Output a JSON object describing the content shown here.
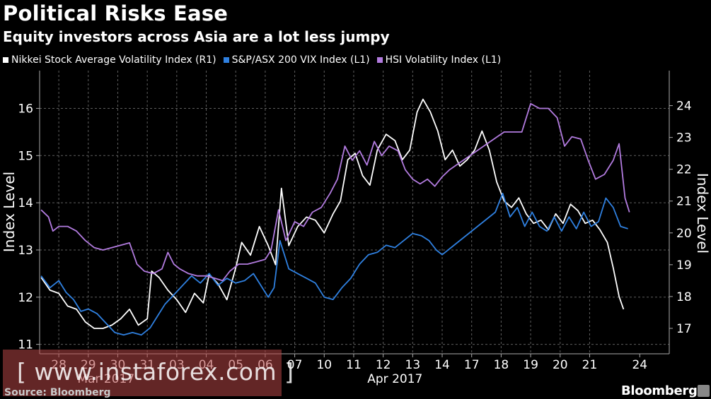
{
  "header": {
    "title": "Political Risks Ease",
    "subtitle": "Equity investors across Asia are a lot less jumpy"
  },
  "footer": {
    "source": "Source: Bloomberg",
    "brand": "Bloomberg",
    "watermark": "[ www.instaforex.com ]"
  },
  "colors": {
    "background": "#000000",
    "nikkei": "#ffffff",
    "asx": "#2f80e0",
    "hsi": "#b27bdf",
    "grid": "#6a6a6a"
  },
  "chart_data": {
    "type": "line",
    "title": "Political Risks Ease",
    "subtitle": "Equity investors across Asia are a lot less jumpy",
    "y_left": {
      "label": "Index Level",
      "range": [
        10.8,
        16.8
      ],
      "ticks": [
        11,
        12,
        13,
        14,
        15,
        16
      ]
    },
    "y_right": {
      "label": "Index Level",
      "range": [
        16.2,
        25.1
      ],
      "ticks": [
        17,
        18,
        19,
        20,
        21,
        22,
        23,
        24
      ]
    },
    "x": {
      "range": [
        27.5,
        24.2
      ],
      "ticks": [
        "28",
        "29",
        "30",
        "31",
        "03",
        "04",
        "05",
        "06",
        "07",
        "10",
        "11",
        "12",
        "13",
        "14",
        "17",
        "18",
        "19",
        "20",
        "21",
        "24"
      ],
      "tick_positions": [
        0,
        1,
        2,
        3,
        4,
        5,
        6,
        7,
        8,
        9,
        10,
        11,
        12,
        13,
        14,
        15,
        16,
        17,
        18,
        19.7
      ],
      "month_labels": [
        {
          "label": "Mar 2017",
          "at": 1.6
        },
        {
          "label": "Apr 2017",
          "at": 11.4
        }
      ],
      "domain": [
        -0.65,
        20.7
      ]
    },
    "series": [
      {
        "name": "Nikkei Stock Average Volatility Index (R1)",
        "axis": "right",
        "color": "#ffffff",
        "points": [
          [
            -0.6,
            18.6
          ],
          [
            -0.3,
            18.2
          ],
          [
            0,
            18.1
          ],
          [
            0.3,
            17.7
          ],
          [
            0.6,
            17.6
          ],
          [
            0.9,
            17.2
          ],
          [
            1.2,
            17.0
          ],
          [
            1.5,
            17.0
          ],
          [
            1.8,
            17.1
          ],
          [
            2.1,
            17.3
          ],
          [
            2.4,
            17.6
          ],
          [
            2.7,
            17.1
          ],
          [
            3.0,
            17.3
          ],
          [
            3.15,
            18.8
          ],
          [
            3.4,
            18.6
          ],
          [
            3.7,
            18.2
          ],
          [
            4.0,
            17.9
          ],
          [
            4.3,
            17.5
          ],
          [
            4.6,
            18.1
          ],
          [
            4.9,
            17.8
          ],
          [
            5.1,
            18.7
          ],
          [
            5.4,
            18.4
          ],
          [
            5.7,
            17.9
          ],
          [
            6.0,
            18.9
          ],
          [
            6.2,
            19.7
          ],
          [
            6.5,
            19.3
          ],
          [
            6.8,
            20.2
          ],
          [
            7.1,
            19.6
          ],
          [
            7.35,
            19.0
          ],
          [
            7.55,
            21.4
          ],
          [
            7.8,
            19.6
          ],
          [
            8.1,
            20.2
          ],
          [
            8.4,
            20.5
          ],
          [
            8.7,
            20.4
          ],
          [
            9.0,
            20.0
          ],
          [
            9.3,
            20.6
          ],
          [
            9.55,
            21.0
          ],
          [
            9.8,
            22.3
          ],
          [
            10.05,
            22.5
          ],
          [
            10.3,
            21.8
          ],
          [
            10.55,
            21.5
          ],
          [
            10.8,
            22.6
          ],
          [
            11.1,
            23.1
          ],
          [
            11.4,
            22.9
          ],
          [
            11.65,
            22.3
          ],
          [
            11.9,
            22.6
          ],
          [
            12.15,
            23.8
          ],
          [
            12.35,
            24.2
          ],
          [
            12.6,
            23.8
          ],
          [
            12.85,
            23.2
          ],
          [
            13.1,
            22.3
          ],
          [
            13.35,
            22.6
          ],
          [
            13.6,
            22.1
          ],
          [
            13.85,
            22.3
          ],
          [
            14.1,
            22.6
          ],
          [
            14.35,
            23.2
          ],
          [
            14.6,
            22.6
          ],
          [
            14.85,
            21.6
          ],
          [
            15.1,
            21.0
          ],
          [
            15.35,
            20.8
          ],
          [
            15.6,
            21.1
          ],
          [
            15.85,
            20.6
          ],
          [
            16.1,
            20.3
          ],
          [
            16.35,
            20.4
          ],
          [
            16.6,
            20.1
          ],
          [
            16.85,
            20.6
          ],
          [
            17.1,
            20.3
          ],
          [
            17.35,
            20.9
          ],
          [
            17.6,
            20.7
          ],
          [
            17.85,
            20.3
          ],
          [
            18.1,
            20.4
          ],
          [
            18.35,
            20.1
          ],
          [
            18.6,
            19.7
          ],
          [
            18.8,
            18.9
          ],
          [
            19.0,
            18.0
          ],
          [
            19.15,
            17.6
          ]
        ]
      },
      {
        "name": "S&P/ASX 200 VIX Index (L1)",
        "axis": "left",
        "color": "#2f80e0",
        "points": [
          [
            -0.6,
            12.45
          ],
          [
            -0.3,
            12.2
          ],
          [
            0,
            12.35
          ],
          [
            0.25,
            12.1
          ],
          [
            0.5,
            11.95
          ],
          [
            0.75,
            11.7
          ],
          [
            1.0,
            11.75
          ],
          [
            1.3,
            11.65
          ],
          [
            1.6,
            11.45
          ],
          [
            1.9,
            11.25
          ],
          [
            2.2,
            11.2
          ],
          [
            2.5,
            11.25
          ],
          [
            2.8,
            11.2
          ],
          [
            3.1,
            11.35
          ],
          [
            3.35,
            11.6
          ],
          [
            3.6,
            11.85
          ],
          [
            3.9,
            12.05
          ],
          [
            4.2,
            12.25
          ],
          [
            4.5,
            12.45
          ],
          [
            4.8,
            12.3
          ],
          [
            5.1,
            12.5
          ],
          [
            5.4,
            12.25
          ],
          [
            5.7,
            12.4
          ],
          [
            6.0,
            12.3
          ],
          [
            6.3,
            12.35
          ],
          [
            6.6,
            12.5
          ],
          [
            6.9,
            12.2
          ],
          [
            7.1,
            12.0
          ],
          [
            7.3,
            12.2
          ],
          [
            7.5,
            13.2
          ],
          [
            7.8,
            12.6
          ],
          [
            8.1,
            12.5
          ],
          [
            8.4,
            12.4
          ],
          [
            8.7,
            12.3
          ],
          [
            9.0,
            12.0
          ],
          [
            9.3,
            11.95
          ],
          [
            9.6,
            12.2
          ],
          [
            9.9,
            12.4
          ],
          [
            10.2,
            12.7
          ],
          [
            10.5,
            12.9
          ],
          [
            10.8,
            12.95
          ],
          [
            11.1,
            13.1
          ],
          [
            11.4,
            13.05
          ],
          [
            11.7,
            13.2
          ],
          [
            12.0,
            13.35
          ],
          [
            12.3,
            13.3
          ],
          [
            12.55,
            13.2
          ],
          [
            12.8,
            13.0
          ],
          [
            13.0,
            12.9
          ],
          [
            14.8,
            13.8
          ],
          [
            15.05,
            14.2
          ],
          [
            15.3,
            13.7
          ],
          [
            15.55,
            13.9
          ],
          [
            15.8,
            13.5
          ],
          [
            16.05,
            13.8
          ],
          [
            16.3,
            13.5
          ],
          [
            16.55,
            13.4
          ],
          [
            16.8,
            13.7
          ],
          [
            17.05,
            13.4
          ],
          [
            17.3,
            13.7
          ],
          [
            17.55,
            13.45
          ],
          [
            17.8,
            13.8
          ],
          [
            18.05,
            13.5
          ],
          [
            18.3,
            13.6
          ],
          [
            18.55,
            14.1
          ],
          [
            18.8,
            13.9
          ],
          [
            19.05,
            13.5
          ],
          [
            19.3,
            13.45
          ]
        ]
      },
      {
        "name": "HSI Volatility Index (L1)",
        "axis": "left",
        "color": "#b27bdf",
        "points": [
          [
            -0.6,
            13.85
          ],
          [
            -0.35,
            13.7
          ],
          [
            -0.2,
            13.4
          ],
          [
            0,
            13.5
          ],
          [
            0.3,
            13.5
          ],
          [
            0.6,
            13.4
          ],
          [
            0.9,
            13.2
          ],
          [
            1.2,
            13.05
          ],
          [
            1.5,
            13.0
          ],
          [
            1.8,
            13.05
          ],
          [
            2.1,
            13.1
          ],
          [
            2.4,
            13.15
          ],
          [
            2.65,
            12.7
          ],
          [
            2.9,
            12.55
          ],
          [
            3.2,
            12.5
          ],
          [
            3.5,
            12.6
          ],
          [
            3.7,
            12.95
          ],
          [
            3.9,
            12.7
          ],
          [
            4.1,
            12.6
          ],
          [
            4.4,
            12.5
          ],
          [
            4.7,
            12.45
          ],
          [
            5.0,
            12.45
          ],
          [
            5.3,
            12.4
          ],
          [
            5.55,
            12.35
          ],
          [
            5.8,
            12.55
          ],
          [
            6.1,
            12.7
          ],
          [
            6.4,
            12.7
          ],
          [
            6.7,
            12.75
          ],
          [
            7.0,
            12.8
          ],
          [
            7.2,
            13.0
          ],
          [
            7.45,
            13.85
          ],
          [
            7.7,
            13.2
          ],
          [
            8.0,
            13.6
          ],
          [
            8.3,
            13.5
          ],
          [
            8.6,
            13.8
          ],
          [
            8.9,
            13.9
          ],
          [
            9.2,
            14.2
          ],
          [
            9.45,
            14.5
          ],
          [
            9.7,
            15.2
          ],
          [
            9.95,
            14.9
          ],
          [
            10.2,
            15.1
          ],
          [
            10.45,
            14.8
          ],
          [
            10.7,
            15.3
          ],
          [
            10.95,
            15.0
          ],
          [
            11.2,
            15.2
          ],
          [
            11.5,
            15.1
          ],
          [
            11.75,
            14.7
          ],
          [
            12.0,
            14.5
          ],
          [
            12.25,
            14.4
          ],
          [
            12.5,
            14.5
          ],
          [
            12.75,
            14.35
          ],
          [
            13.0,
            14.55
          ],
          [
            13.25,
            14.7
          ],
          [
            15.1,
            15.5
          ],
          [
            15.4,
            15.5
          ],
          [
            15.7,
            15.5
          ],
          [
            16.0,
            16.1
          ],
          [
            16.3,
            16.0
          ],
          [
            16.6,
            16.0
          ],
          [
            16.9,
            15.8
          ],
          [
            17.15,
            15.2
          ],
          [
            17.4,
            15.4
          ],
          [
            17.7,
            15.35
          ],
          [
            17.95,
            14.9
          ],
          [
            18.2,
            14.5
          ],
          [
            18.5,
            14.6
          ],
          [
            18.8,
            14.9
          ],
          [
            19.0,
            15.25
          ],
          [
            19.2,
            14.1
          ],
          [
            19.35,
            13.8
          ]
        ]
      }
    ]
  }
}
